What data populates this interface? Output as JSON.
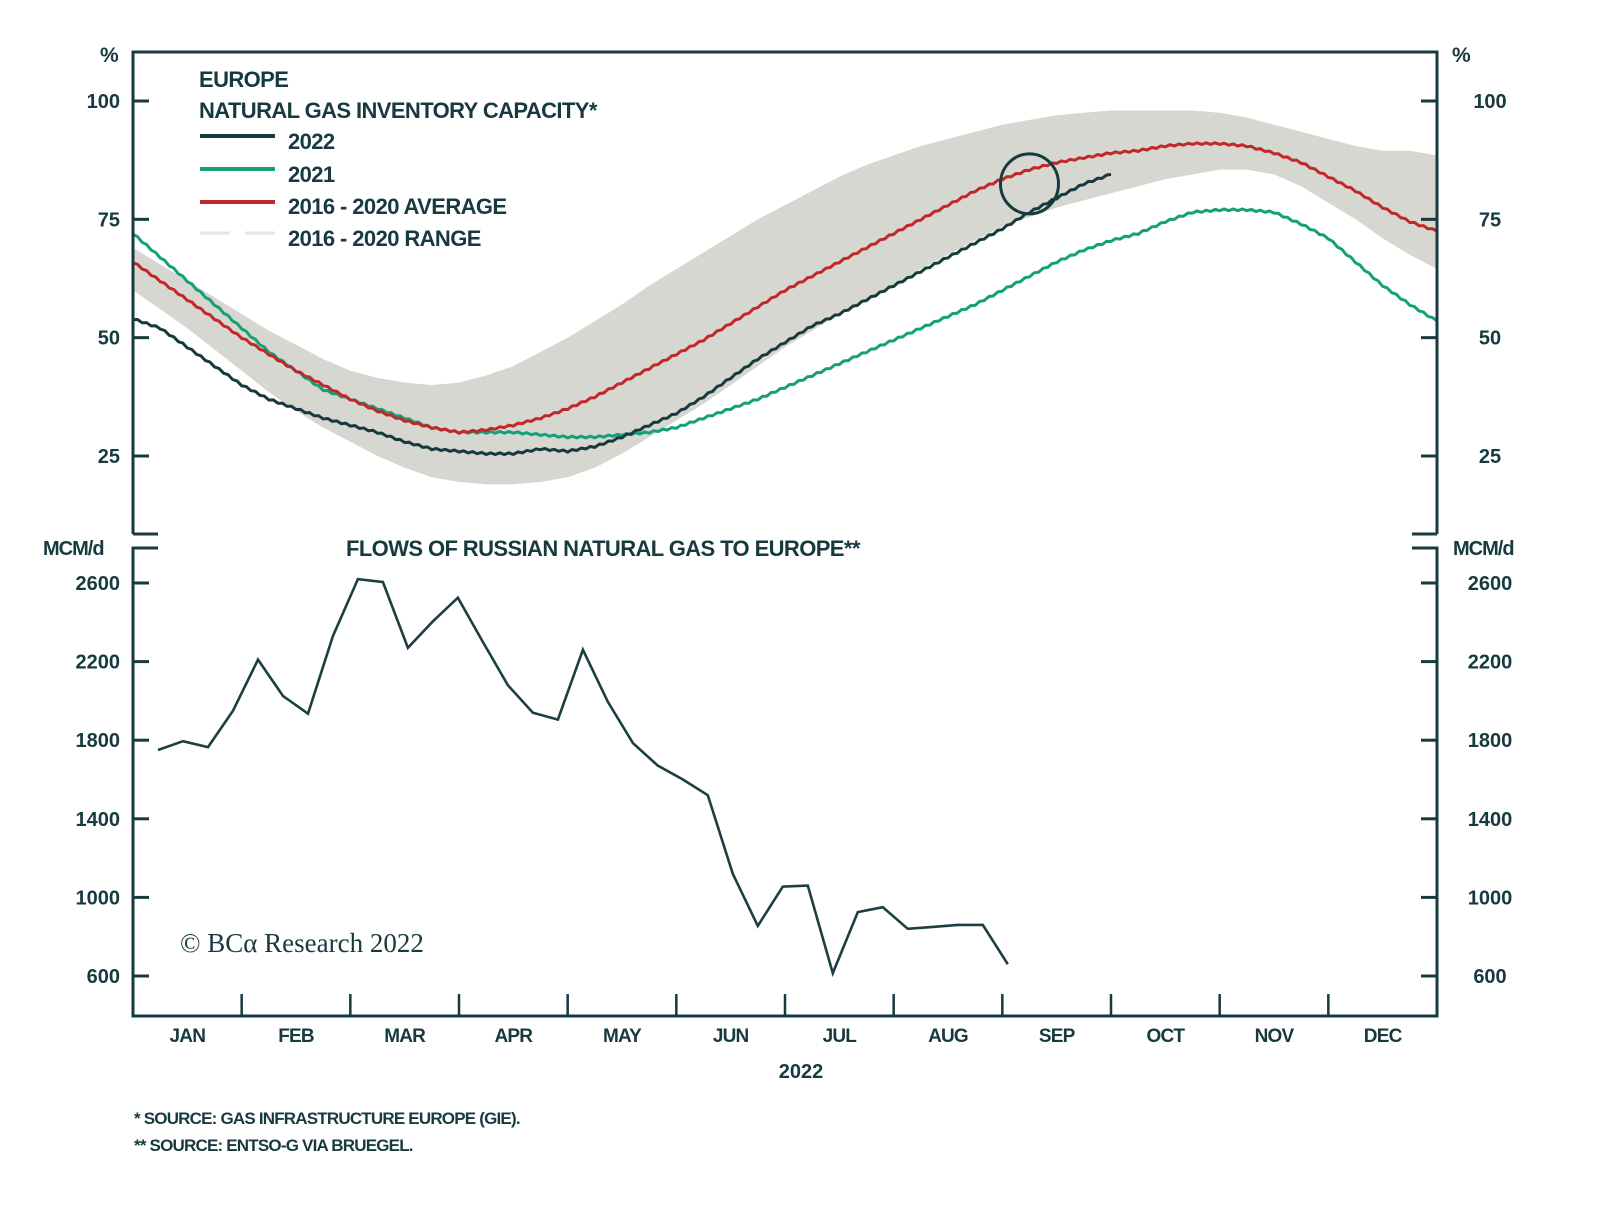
{
  "colors": {
    "axis": "#173a3f",
    "line_2022": "#173a3f",
    "line_2021": "#14a07a",
    "line_avg": "#c0282a",
    "range_fill": "#d7d7d1",
    "annotation_circle": "#173a3f",
    "flows_line": "#1c3f42"
  },
  "chart_data": [
    {
      "type": "area",
      "title": "EUROPE\nNATURAL GAS INVENTORY CAPACITY*",
      "title_lines": [
        "EUROPE",
        "NATURAL GAS INVENTORY CAPACITY*"
      ],
      "ylabel": "%",
      "ylim": [
        10,
        110
      ],
      "yticks": [
        100,
        75,
        50,
        25
      ],
      "xlim_months": [
        0,
        12
      ],
      "grid": false,
      "legend_position": "top-left",
      "legend": [
        {
          "name": "2022",
          "key": "y2022"
        },
        {
          "name": "2021",
          "key": "y2021"
        },
        {
          "name": "2016 - 2020 AVERAGE",
          "key": "avg"
        },
        {
          "name": "2016 - 2020 RANGE",
          "key": "range"
        }
      ],
      "x_months": [
        0.0,
        0.25,
        0.5,
        0.75,
        1.0,
        1.25,
        1.5,
        1.75,
        2.0,
        2.25,
        2.5,
        2.75,
        3.0,
        3.25,
        3.5,
        3.75,
        4.0,
        4.25,
        4.5,
        4.75,
        5.0,
        5.25,
        5.5,
        5.75,
        6.0,
        6.25,
        6.5,
        6.75,
        7.0,
        7.25,
        7.5,
        7.75,
        8.0,
        8.25,
        8.5,
        8.75,
        9.0,
        9.25,
        9.5,
        9.75,
        10.0,
        10.25,
        10.5,
        10.75,
        11.0,
        11.25,
        11.5,
        11.75,
        12.0
      ],
      "series": [
        {
          "name": "2022",
          "key": "y2022",
          "values": [
            54,
            52,
            48,
            44,
            40,
            37,
            35,
            33,
            31.5,
            30,
            28,
            26.5,
            26,
            25.5,
            25.5,
            26.5,
            26,
            27,
            29,
            31.5,
            34,
            37.5,
            41.5,
            45.5,
            49,
            52.5,
            55,
            58,
            61,
            64,
            67,
            70,
            73,
            76.5,
            79.5,
            82.5,
            84.5,
            null,
            null,
            null,
            null,
            null,
            null,
            null,
            null,
            null,
            null,
            null,
            null
          ]
        },
        {
          "name": "2021",
          "key": "y2021",
          "values": [
            72,
            67,
            62,
            57,
            52,
            47,
            43,
            39,
            37,
            35,
            33,
            31,
            30,
            30,
            30,
            29.5,
            29,
            29,
            29.5,
            30,
            31,
            33,
            35,
            37,
            39.5,
            42,
            44.5,
            47,
            49.5,
            52,
            54.5,
            57,
            60,
            63,
            66,
            68.5,
            70.5,
            72,
            74.5,
            76.5,
            77,
            77,
            76.5,
            74,
            71,
            66,
            61,
            57,
            53.5
          ]
        },
        {
          "name": "2016 - 2020 AVERAGE",
          "key": "avg",
          "values": [
            66,
            62,
            58,
            54,
            50,
            46.5,
            43,
            40,
            37,
            34.5,
            32.5,
            31,
            30,
            30.5,
            31.5,
            33,
            35,
            37.5,
            40.5,
            43.5,
            46.5,
            49.5,
            53,
            56.5,
            60,
            63,
            66,
            69,
            72,
            75,
            78,
            81,
            83.5,
            85.5,
            87,
            88,
            89,
            89.5,
            90.5,
            91,
            91,
            90.5,
            89,
            87,
            84,
            81,
            77.5,
            74.5,
            72.5
          ]
        }
      ],
      "range": {
        "name": "2016 - 2020 RANGE",
        "low": [
          60,
          56,
          52,
          47.5,
          43,
          38.5,
          34.5,
          31,
          28,
          25,
          22.5,
          20.5,
          19.5,
          19,
          19,
          19.5,
          20.5,
          22.5,
          25.5,
          29,
          32.5,
          36,
          40,
          44,
          48,
          51.5,
          55,
          58,
          61,
          64.5,
          67.5,
          70.5,
          73.5,
          75.5,
          77.5,
          79,
          80.5,
          82,
          83.5,
          84.5,
          85.5,
          85.5,
          84.5,
          82,
          78.5,
          75,
          71,
          67.5,
          64.5
        ],
        "high": [
          69,
          65.5,
          62,
          58.5,
          55,
          51.5,
          48.5,
          45.5,
          43,
          41.5,
          40.5,
          40,
          40.5,
          42,
          44,
          47,
          50,
          53.5,
          57,
          61,
          64.5,
          68,
          71.5,
          75,
          78,
          81,
          84,
          86.5,
          88.5,
          90.5,
          92,
          93.5,
          95,
          96,
          97,
          97.5,
          98,
          98,
          98,
          98,
          97.5,
          96.5,
          95,
          93.5,
          92,
          90.5,
          89.5,
          89.5,
          88.5
        ]
      },
      "annotation": {
        "type": "circle",
        "x_month": 8.25,
        "y": 82.5
      }
    },
    {
      "type": "line",
      "title": "FLOWS OF RUSSIAN NATURAL GAS TO EUROPE**",
      "ylabel": "MCM/d",
      "ylim": [
        400,
        2800
      ],
      "yticks": [
        2600,
        2200,
        1800,
        1400,
        1000,
        600
      ],
      "grid": false,
      "x_months": [
        0.23,
        0.46,
        0.69,
        0.92,
        1.15,
        1.38,
        1.61,
        1.84,
        2.07,
        2.3,
        2.53,
        2.76,
        2.99,
        3.22,
        3.45,
        3.68,
        3.91,
        4.14,
        4.37,
        4.6,
        4.83,
        5.06,
        5.29,
        5.52,
        5.75,
        5.98,
        6.21,
        6.44,
        6.67,
        6.9,
        7.13,
        7.36,
        7.59,
        7.82,
        8.05
      ],
      "series": [
        {
          "name": "Russian gas flows",
          "key": "flows",
          "values": [
            1750,
            1795,
            1765,
            1950,
            2210,
            2025,
            1935,
            2330,
            2620,
            2605,
            2270,
            2405,
            2525,
            2300,
            2080,
            1940,
            1905,
            2260,
            1995,
            1785,
            1670,
            1600,
            1520,
            1120,
            855,
            1055,
            1060,
            615,
            925,
            950,
            840,
            850,
            860,
            860,
            660
          ]
        }
      ]
    }
  ],
  "x_axis": {
    "categories": [
      "JAN",
      "FEB",
      "MAR",
      "APR",
      "MAY",
      "JUN",
      "JUL",
      "AUG",
      "SEP",
      "OCT",
      "NOV",
      "DEC"
    ],
    "label": "2022"
  },
  "axis_units": {
    "top_left": "%",
    "top_right": "%",
    "bottom_left": "MCM/d",
    "bottom_right": "MCM/d"
  },
  "watermark": "© BCα Research 2022",
  "footnotes": [
    "*  SOURCE: GAS INFRASTRUCTURE EUROPE (GIE).",
    "** SOURCE: ENTSO-G VIA BRUEGEL."
  ]
}
